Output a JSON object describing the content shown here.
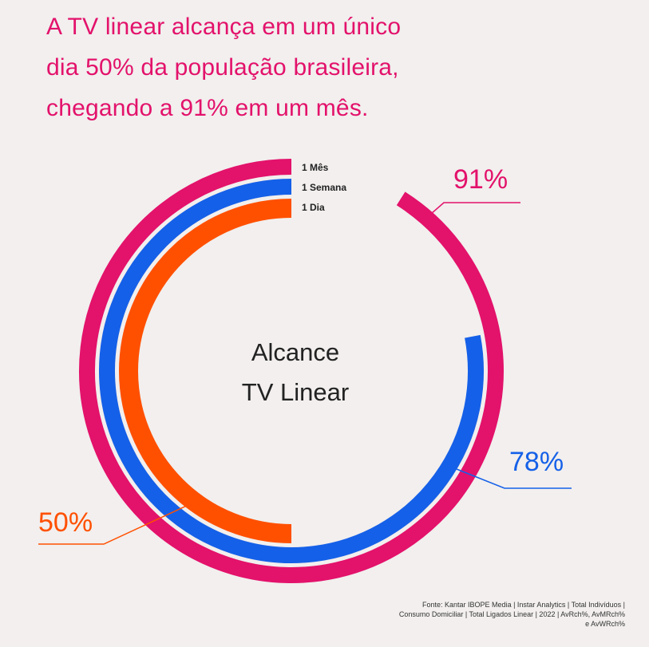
{
  "headline": {
    "lines": [
      "A TV linear alcança em um único",
      "dia 50% da população brasileira,",
      "chegando a 91% em um mês."
    ]
  },
  "center": {
    "line1": "Alcance",
    "line2": "TV Linear"
  },
  "source": {
    "lines": [
      "Fonte: Kantar IBOPE Media | Instar Analytics | Total Indivíduos |",
      "Consumo Domiciliar | Total Ligados Linear | 2022 | AvRch%, AvMRch%",
      "e AvWRch%"
    ]
  },
  "colors": {
    "background": "#f2efee",
    "headline": "#e3126b",
    "month": "#e3126b",
    "week": "#1560e8",
    "day": "#ff5000",
    "center_text": "#222222"
  },
  "chart_data": {
    "type": "radial-bar",
    "unit": "%",
    "max": 100,
    "series": [
      {
        "name": "1 Mês",
        "value": 91,
        "label": "91%"
      },
      {
        "name": "1 Semana",
        "value": 78,
        "label": "78%"
      },
      {
        "name": "1 Dia",
        "value": 50,
        "label": "50%"
      }
    ]
  }
}
